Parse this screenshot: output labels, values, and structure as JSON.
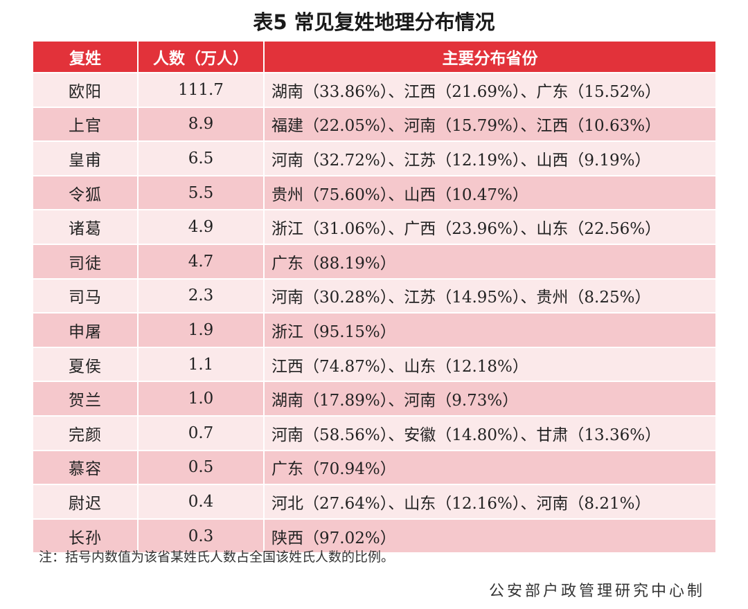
{
  "title": "表5 常见复姓地理分布情况",
  "table": {
    "headers": [
      "复姓",
      "人数（万人）",
      "主要分布省份"
    ],
    "rows": [
      {
        "surname": "欧阳",
        "population": "111.7",
        "distribution": "湖南（33.86%）、江西（21.69%）、广东（15.52%）"
      },
      {
        "surname": "上官",
        "population": "8.9",
        "distribution": "福建（22.05%）、河南（15.79%）、江西（10.63%）"
      },
      {
        "surname": "皇甫",
        "population": "6.5",
        "distribution": "河南（32.72%）、江苏（12.19%）、山西（9.19%）"
      },
      {
        "surname": "令狐",
        "population": "5.5",
        "distribution": "贵州（75.60%）、山西（10.47%）"
      },
      {
        "surname": "诸葛",
        "population": "4.9",
        "distribution": "浙江（31.06%）、广西（23.96%）、山东（22.56%）"
      },
      {
        "surname": "司徒",
        "population": "4.7",
        "distribution": "广东（88.19%）"
      },
      {
        "surname": "司马",
        "population": "2.3",
        "distribution": "河南（30.28%）、江苏（14.95%）、贵州（8.25%）"
      },
      {
        "surname": "申屠",
        "population": "1.9",
        "distribution": "浙江（95.15%）"
      },
      {
        "surname": "夏侯",
        "population": "1.1",
        "distribution": "江西（74.87%）、山东（12.18%）"
      },
      {
        "surname": "贺兰",
        "population": "1.0",
        "distribution": "湖南（17.89%）、河南（9.73%）"
      },
      {
        "surname": "完颜",
        "population": "0.7",
        "distribution": "河南（58.56%）、安徽（14.80%）、甘肃（13.36%）"
      },
      {
        "surname": "慕容",
        "population": "0.5",
        "distribution": "广东（70.94%）"
      },
      {
        "surname": "尉迟",
        "population": "0.4",
        "distribution": "河北（27.64%）、山东（12.16%）、河南（8.21%）"
      },
      {
        "surname": "长孙",
        "population": "0.3",
        "distribution": "陕西（97.02%）"
      }
    ]
  },
  "note": "注：括号内数值为该省某姓氏人数占全国该姓氏人数的比例。",
  "source": "公安部户政管理研究中心制",
  "colors": {
    "header_bg": "#e2323a",
    "row_light": "#fbe9ea",
    "row_dark": "#f5c8cc"
  }
}
